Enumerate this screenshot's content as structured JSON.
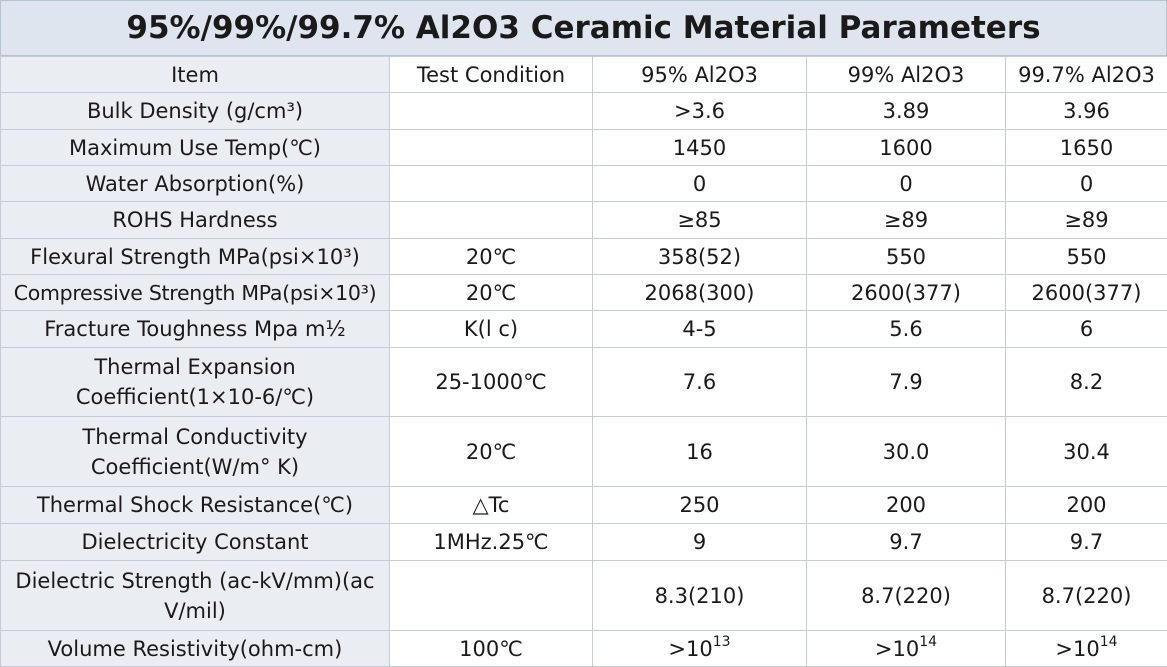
{
  "title": "95%/99%/99.7% Al2O3 Ceramic Material Parameters",
  "headers": {
    "item": "Item",
    "condition": "Test Condition",
    "col95": "95% Al2O3",
    "col99": "99% Al2O3",
    "col997": "99.7% Al2O3"
  },
  "rows": [
    {
      "item": "Bulk Density (g/cm³)",
      "condition": "",
      "v95": ">3.6",
      "v99": "3.89",
      "v997": "3.96"
    },
    {
      "item": "Maximum Use Temp(℃)",
      "condition": "",
      "v95": "1450",
      "v99": "1600",
      "v997": "1650"
    },
    {
      "item": "Water Absorption(%)",
      "condition": "",
      "v95": "0",
      "v99": "0",
      "v997": "0"
    },
    {
      "item": "ROHS Hardness",
      "condition": "",
      "v95": "≥85",
      "v99": "≥89",
      "v997": "≥89"
    },
    {
      "item": "Flexural Strength MPa(psi×10³)",
      "condition": "20℃",
      "v95": "358(52)",
      "v99": "550",
      "v997": "550"
    },
    {
      "item": "Compressive Strength MPa(psi×10³)",
      "condition": "20℃",
      "v95": "2068(300)",
      "v99": "2600(377)",
      "v997": "2600(377)"
    },
    {
      "item": "Fracture Toughness Mpa m½",
      "condition": "K(l c)",
      "v95": "4-5",
      "v99": "5.6",
      "v997": "6"
    },
    {
      "item": "Thermal Expansion Coefficient(1×10-6/℃)",
      "condition": "25-1000℃",
      "v95": "7.6",
      "v99": "7.9",
      "v997": "8.2"
    },
    {
      "item": "Thermal Conductivity Coefficient(W/m° K)",
      "condition": "20℃",
      "v95": "16",
      "v99": "30.0",
      "v997": "30.4"
    },
    {
      "item": "Thermal Shock Resistance(℃)",
      "condition": "△Tc",
      "v95": "250",
      "v99": "200",
      "v997": "200"
    },
    {
      "item": "Dielectricity Constant",
      "condition": "1MHz.25℃",
      "v95": "9",
      "v99": "9.7",
      "v997": "9.7"
    },
    {
      "item": "Dielectric Strength (ac-kV/mm)(ac V/mil)",
      "condition": "",
      "v95": "8.3(210)",
      "v99": "8.7(220)",
      "v997": "8.7(220)"
    }
  ],
  "resistivity": {
    "item": "Volume Resistivity(ohm-cm)",
    "condition": "100℃",
    "v95_base": ">10",
    "v95_exp": "13",
    "v99_base": ">10",
    "v99_exp": "14",
    "v997_base": ">10",
    "v997_exp": "14"
  }
}
